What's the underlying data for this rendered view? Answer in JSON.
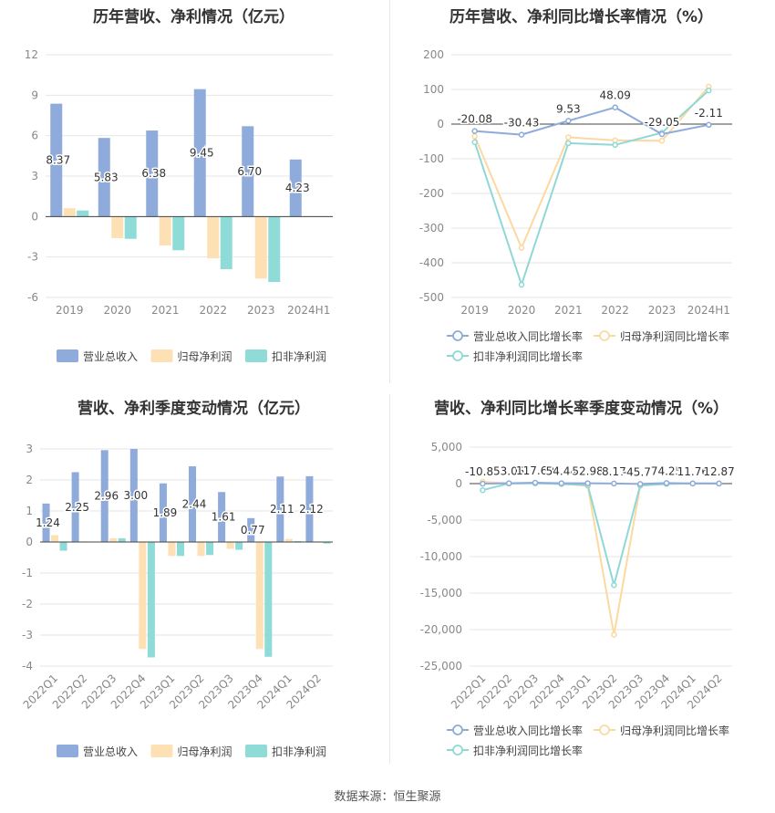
{
  "footer": "数据来源：恒生聚源",
  "colors": {
    "revenue": "#8eabdb",
    "net_profit": "#fde0b3",
    "deducted_profit": "#8fdbd7",
    "revenue_line": "#8eabdb",
    "net_profit_line": "#fbd9a0",
    "deducted_line": "#8fd8d6"
  },
  "chart_data": [
    {
      "id": "annual_bar",
      "type": "bar",
      "title": "历年营收、净利情况（亿元）",
      "categories": [
        "2019",
        "2020",
        "2021",
        "2022",
        "2023",
        "2024H1"
      ],
      "series": [
        {
          "name": "营业总收入",
          "values": [
            8.37,
            5.83,
            6.38,
            9.45,
            6.7,
            4.23
          ]
        },
        {
          "name": "归母净利润",
          "values": [
            0.62,
            -1.6,
            -2.15,
            -3.1,
            -4.6,
            0.03
          ]
        },
        {
          "name": "扣非净利润",
          "values": [
            0.45,
            -1.65,
            -2.5,
            -3.9,
            -4.85,
            0.02
          ]
        }
      ],
      "data_labels": [
        "8.37",
        "5.83",
        "6.38",
        "9.45",
        "6.70",
        "4.23"
      ],
      "ylim": [
        -6,
        12
      ],
      "yticks": [
        "12",
        "9",
        "6",
        "3",
        "0",
        "-3",
        "-6"
      ],
      "legend_position": "bottom"
    },
    {
      "id": "annual_line",
      "type": "line",
      "title": "历年营收、净利同比增长率情况（%）",
      "categories": [
        "2019",
        "2020",
        "2021",
        "2022",
        "2023",
        "2024H1"
      ],
      "series": [
        {
          "name": "营业总收入同比增长率",
          "values": [
            -20.08,
            -30.43,
            9.53,
            48.09,
            -29.05,
            -2.11
          ]
        },
        {
          "name": "归母净利润同比增长率",
          "values": [
            -35,
            -357,
            -38,
            -47,
            -48,
            108
          ]
        },
        {
          "name": "扣非净利润同比增长率",
          "values": [
            -52,
            -463,
            -55,
            -60,
            -25,
            97
          ]
        }
      ],
      "data_labels": [
        "-20.08",
        "-30.43",
        "9.53",
        "48.09",
        "-29.05",
        "-2.11"
      ],
      "ylim": [
        -500,
        200
      ],
      "yticks": [
        "200",
        "100",
        "0",
        "-100",
        "-200",
        "-300",
        "-400",
        "-500"
      ],
      "legend_position": "bottom"
    },
    {
      "id": "quarter_bar",
      "type": "bar",
      "title": "营收、净利季度变动情况（亿元）",
      "categories": [
        "2022Q1",
        "2022Q2",
        "2022Q3",
        "2022Q4",
        "2023Q1",
        "2023Q2",
        "2023Q3",
        "2023Q4",
        "2024Q1",
        "2024Q2"
      ],
      "series": [
        {
          "name": "营业总收入",
          "values": [
            1.24,
            2.25,
            2.96,
            3.0,
            1.89,
            2.44,
            1.61,
            0.77,
            2.11,
            2.12
          ]
        },
        {
          "name": "归母净利润",
          "values": [
            0.22,
            0.02,
            0.12,
            -3.45,
            -0.45,
            -0.45,
            -0.22,
            -3.45,
            0.1,
            0.02
          ]
        },
        {
          "name": "扣非净利润",
          "values": [
            -0.28,
            0.01,
            0.12,
            -3.72,
            -0.45,
            -0.42,
            -0.25,
            -3.7,
            0.03,
            -0.05
          ]
        }
      ],
      "data_labels": [
        "1.24",
        "2.25",
        "2.96",
        "3.00",
        "1.89",
        "2.44",
        "1.61",
        "0.77",
        "2.11",
        "2.12"
      ],
      "ylim": [
        -4,
        3
      ],
      "yticks": [
        "3",
        "2",
        "1",
        "0",
        "-1",
        "-2",
        "-3",
        "-4"
      ],
      "legend_position": "bottom"
    },
    {
      "id": "quarter_line",
      "type": "line",
      "title": "营收、净利同比增长率季度变动情况（%）",
      "categories": [
        "2022Q1",
        "2022Q2",
        "2022Q3",
        "2022Q4",
        "2023Q1",
        "2023Q2",
        "2023Q3",
        "2023Q4",
        "2024Q1",
        "2024Q2"
      ],
      "series": [
        {
          "name": "营业总收入同比增长率",
          "values": [
            -10.85,
            53.05,
            117.69,
            54.44,
            52.98,
            8.17,
            -45.77,
            74.25,
            11.76,
            12.87
          ]
        },
        {
          "name": "归母净利润同比增长率",
          "values": [
            250,
            30,
            60,
            -40,
            -300,
            -20700,
            -300,
            -30,
            50,
            20
          ]
        },
        {
          "name": "扣非净利润同比增长率",
          "values": [
            -900,
            20,
            40,
            -50,
            -200,
            -13900,
            -250,
            -40,
            30,
            10
          ]
        }
      ],
      "data_labels": [
        "-10.85",
        "53.05",
        "117.69",
        "54.44",
        "52.98",
        "8.17",
        "-45.77",
        "74.25",
        "11.76",
        "12.87"
      ],
      "ylim": [
        -25000,
        5000
      ],
      "yticks": [
        "5,000",
        "0",
        "-5,000",
        "-10,000",
        "-15,000",
        "-20,000",
        "-25,000"
      ],
      "legend_position": "bottom"
    }
  ]
}
